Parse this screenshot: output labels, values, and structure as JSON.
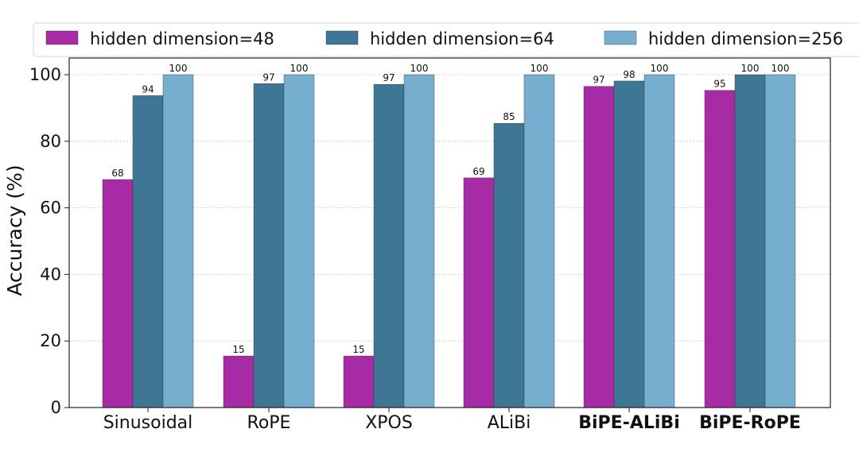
{
  "chart_data": {
    "type": "bar",
    "title": "",
    "xlabel": "",
    "ylabel": "Accuracy (%)",
    "ylim": [
      0,
      105
    ],
    "yticks": [
      "0",
      "20",
      "40",
      "60",
      "80",
      "100"
    ],
    "ytick_values": [
      0,
      20,
      40,
      60,
      80,
      100
    ],
    "grid": "horizontal dotted",
    "legend_position": "top",
    "categories": [
      "Sinusoidal",
      "RoPE",
      "XPOS",
      "ALiBi",
      "BiPE-ALiBi",
      "BiPE-RoPE"
    ],
    "bold_categories": [
      "BiPE-ALiBi",
      "BiPE-RoPE"
    ],
    "series": [
      {
        "name": "hidden dimension=48",
        "color": "#a82ba6",
        "values": [
          68.5,
          15.5,
          15.5,
          69,
          96.5,
          95.3
        ],
        "labels": [
          "68",
          "15",
          "15",
          "69",
          "97",
          "95"
        ]
      },
      {
        "name": "hidden dimension=64",
        "color": "#3e7796",
        "values": [
          93.7,
          97.3,
          97.1,
          85.4,
          98.1,
          100
        ],
        "labels": [
          "94",
          "97",
          "97",
          "85",
          "98",
          "100"
        ]
      },
      {
        "name": "hidden dimension=256",
        "color": "#76aecf",
        "values": [
          100,
          100,
          100,
          100,
          100,
          100
        ],
        "labels": [
          "100",
          "100",
          "100",
          "100",
          "100",
          "100"
        ]
      }
    ]
  }
}
